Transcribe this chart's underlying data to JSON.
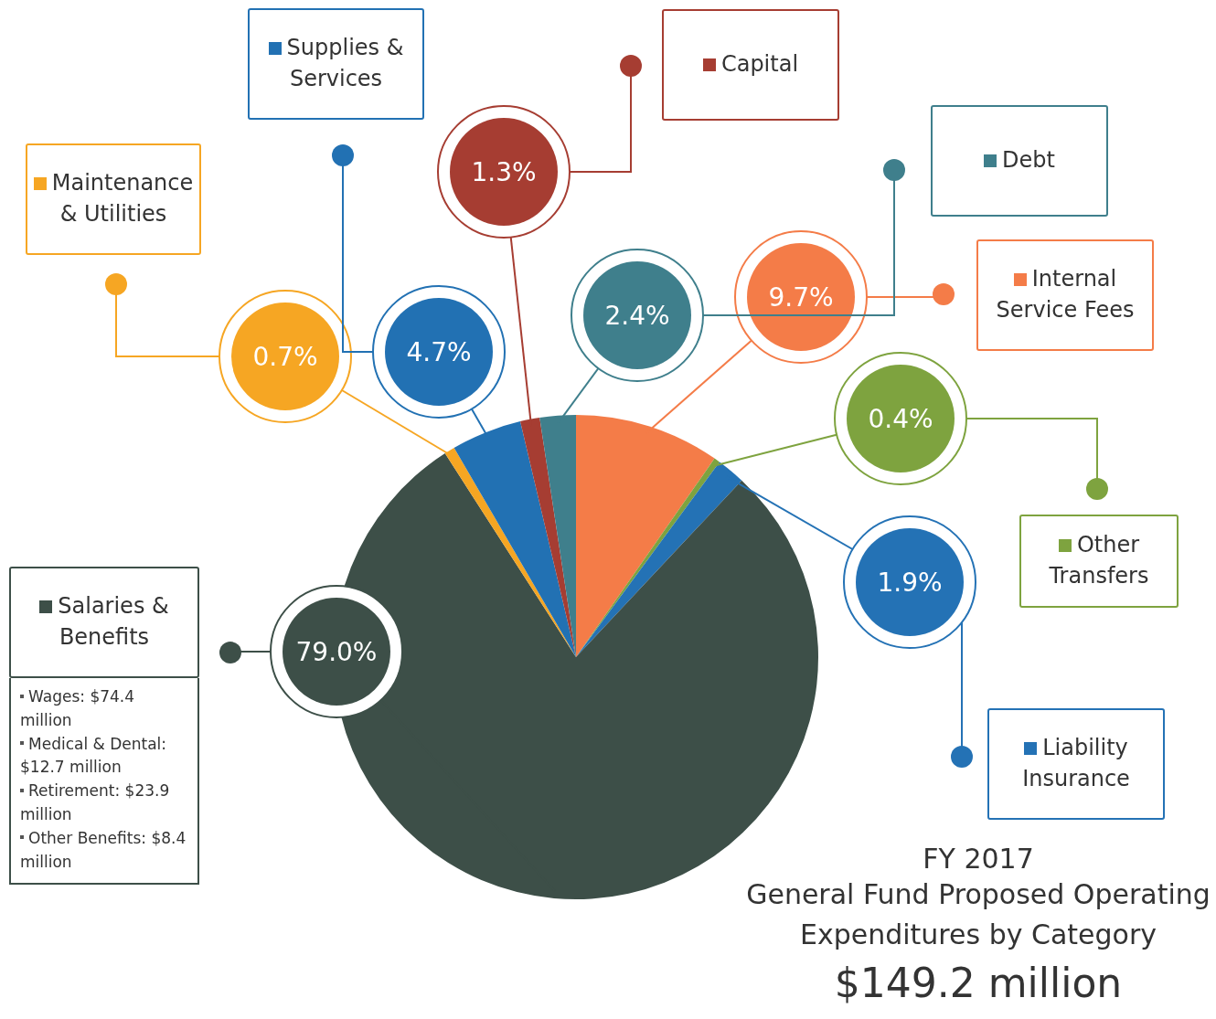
{
  "chart_data": {
    "type": "pie",
    "title": "FY 2017",
    "subtitle": "General Fund Proposed Operating Expenditures by Category",
    "categories": [
      "Internal Service Fees",
      "Other Transfers",
      "Liability Insurance",
      "Salaries & Benefits",
      "Maintenance & Utilities",
      "Supplies & Services",
      "Capital",
      "Debt"
    ],
    "values": [
      9.7,
      0.4,
      1.9,
      79.0,
      0.7,
      4.7,
      1.3,
      2.4
    ],
    "value_labels": [
      "9.7%",
      "0.4%",
      "1.9%",
      "79.0%",
      "0.7%",
      "4.7%",
      "1.3%",
      "2.4%"
    ],
    "colors": [
      "#f47c48",
      "#7ea33f",
      "#2472b5",
      "#3d4f48",
      "#f6a623",
      "#2271b3",
      "#a63d32",
      "#3f7f8c"
    ],
    "annotations": [
      "Wages: $74.4 million",
      "Medical & Dental: $12.7 million",
      "Retirement: $23.9 million",
      "Other Benefits: $8.4 million",
      "$149.2 million"
    ],
    "legend": "top"
  }
}
